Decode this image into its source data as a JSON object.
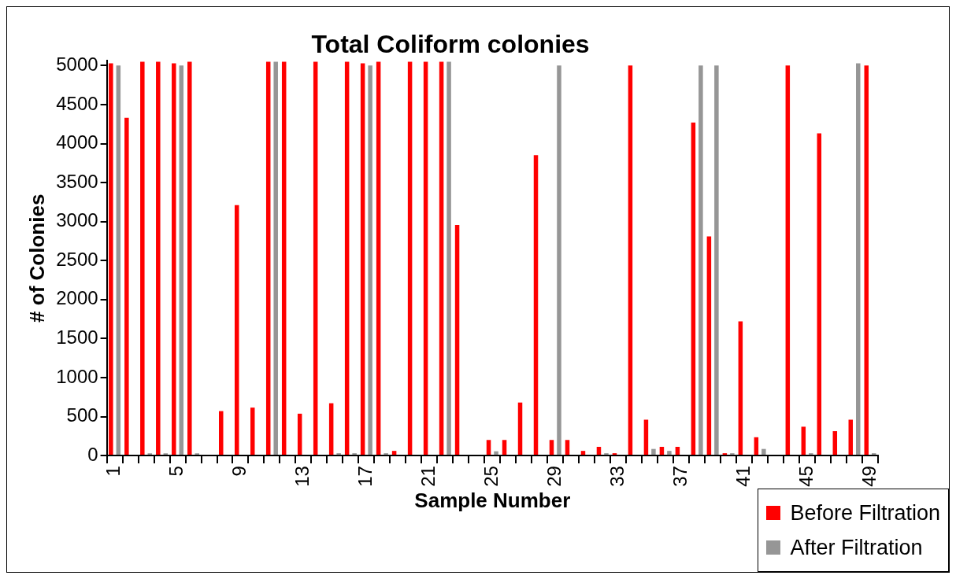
{
  "chart_data": {
    "type": "bar",
    "title": "Total Coliform colonies",
    "xlabel": "Sample Number",
    "ylabel": "# of Colonies",
    "categories": [
      "1",
      null,
      null,
      null,
      "5",
      null,
      null,
      null,
      "9",
      null,
      null,
      null,
      "13",
      null,
      null,
      null,
      "17",
      null,
      null,
      null,
      "21",
      null,
      null,
      null,
      "25",
      null,
      null,
      null,
      "29",
      null,
      null,
      null,
      "33",
      null,
      null,
      null,
      "37",
      null,
      null,
      null,
      "41",
      null,
      null,
      null,
      "45",
      null,
      null,
      null,
      "49"
    ],
    "series": [
      {
        "name": "Before Filtration",
        "color": "#ff0000",
        "values": [
          5030,
          4330,
          5050,
          5050,
          5030,
          5050,
          null,
          570,
          3210,
          615,
          5050,
          5050,
          537,
          5050,
          671,
          5050,
          5030,
          5050,
          60,
          5050,
          5050,
          5050,
          2955,
          null,
          200,
          200,
          680,
          3850,
          200,
          200,
          60,
          112,
          30,
          5000,
          460,
          112,
          112,
          4270,
          2810,
          30,
          1720,
          235,
          null,
          5000,
          370,
          4130,
          313,
          460,
          5000
        ]
      },
      {
        "name": "After Filtration",
        "color": "#969696",
        "values": [
          5000,
          null,
          30,
          30,
          5000,
          30,
          null,
          null,
          null,
          null,
          5050,
          null,
          null,
          null,
          30,
          30,
          5000,
          30,
          null,
          null,
          null,
          5050,
          null,
          null,
          55,
          null,
          null,
          null,
          5000,
          null,
          null,
          30,
          null,
          null,
          85,
          60,
          null,
          5000,
          5000,
          30,
          null,
          85,
          null,
          null,
          30,
          null,
          null,
          5030,
          30
        ]
      }
    ],
    "ylim": [
      0,
      5060
    ],
    "yticks": [
      0,
      500,
      1000,
      1500,
      2000,
      2500,
      3000,
      3500,
      4000,
      4500,
      5000
    ],
    "grid": false,
    "legend": "bottom right"
  }
}
